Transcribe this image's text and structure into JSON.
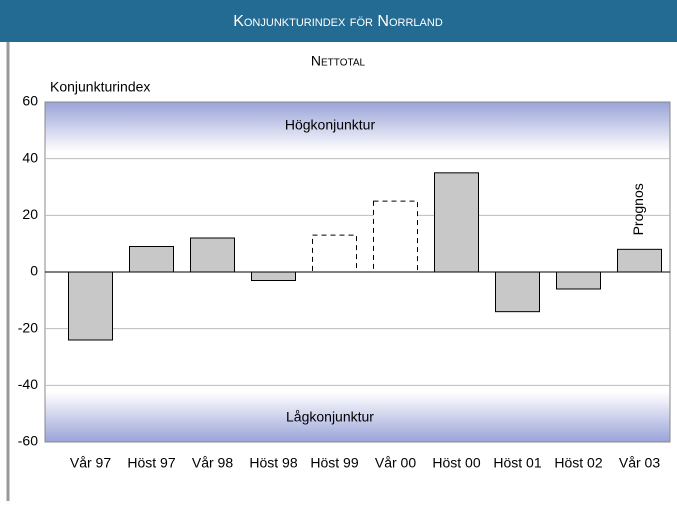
{
  "chart_data": {
    "type": "bar",
    "title": "Konjunkturindex för Norrland",
    "subtitle": "Nettotal",
    "y_label": "Konjunkturindex",
    "annotations": {
      "high": "Högkonjunktur",
      "low": "Lågkonjunktur",
      "forecast": "Prognos"
    },
    "categories": [
      "Vår 97",
      "Höst 97",
      "Vår 98",
      "Höst 98",
      "Höst 99",
      "Vår 00",
      "Höst 00",
      "Höst 01",
      "Höst 02",
      "Vår 03"
    ],
    "values": [
      -24,
      9,
      12,
      -3,
      13,
      25,
      35,
      -14,
      -6,
      8
    ],
    "bar_styles": [
      "solid",
      "solid",
      "solid",
      "solid",
      "dashed",
      "dashed",
      "solid",
      "solid",
      "solid",
      "solid"
    ],
    "color": "#c8c8c8",
    "ylim": [
      -60,
      60
    ],
    "yticks": [
      -60,
      -40,
      -20,
      0,
      20,
      40,
      60
    ],
    "grid": true
  }
}
